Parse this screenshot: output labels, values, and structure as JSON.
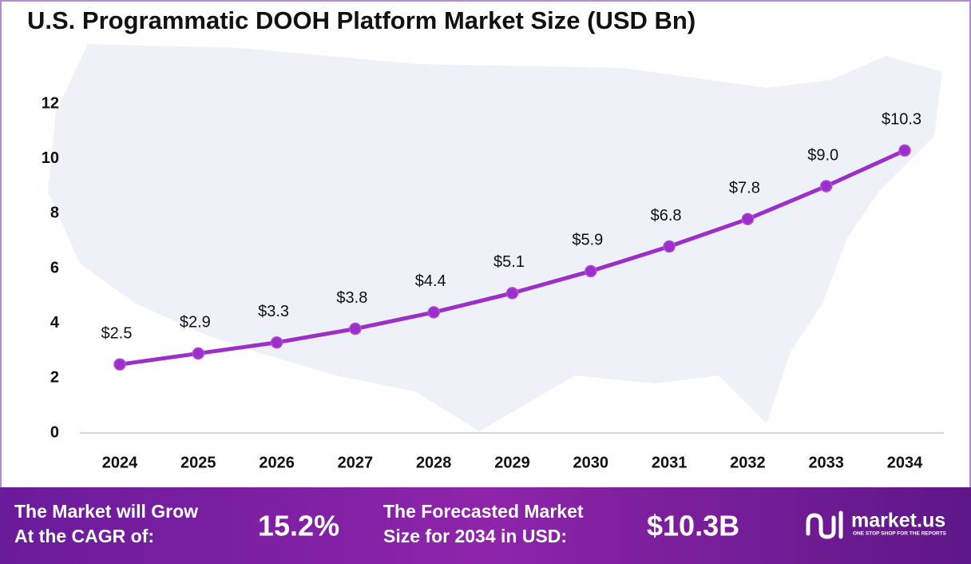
{
  "chart_data": {
    "type": "line",
    "title": "U.S. Programmatic DOOH Platform Market Size (USD Bn)",
    "categories": [
      "2024",
      "2025",
      "2026",
      "2027",
      "2028",
      "2029",
      "2030",
      "2031",
      "2032",
      "2033",
      "2034"
    ],
    "values": [
      2.5,
      2.9,
      3.3,
      3.8,
      4.4,
      5.1,
      5.9,
      6.8,
      7.8,
      9.0,
      10.3
    ],
    "value_labels": [
      "$2.5",
      "$2.9",
      "$3.3",
      "$3.8",
      "$4.4",
      "$5.1",
      "$5.9",
      "$6.8",
      "$7.8",
      "$9.0",
      "$10.3"
    ],
    "color": "#9c2fc8",
    "ylim": [
      0,
      12
    ],
    "yticks": [
      0,
      2,
      4,
      6,
      8,
      10,
      12
    ],
    "grid": false
  },
  "footer": {
    "cagr_text": [
      "The Market will Grow",
      "At the CAGR of:"
    ],
    "cagr_value": "15.2%",
    "forecast_text": [
      "The Forecasted Market",
      "Size for 2034 in USD:"
    ],
    "forecast_value": "$10.3B",
    "brand": "market.us",
    "tagline": "ONE STOP SHOP FOR THE REPORTS"
  }
}
